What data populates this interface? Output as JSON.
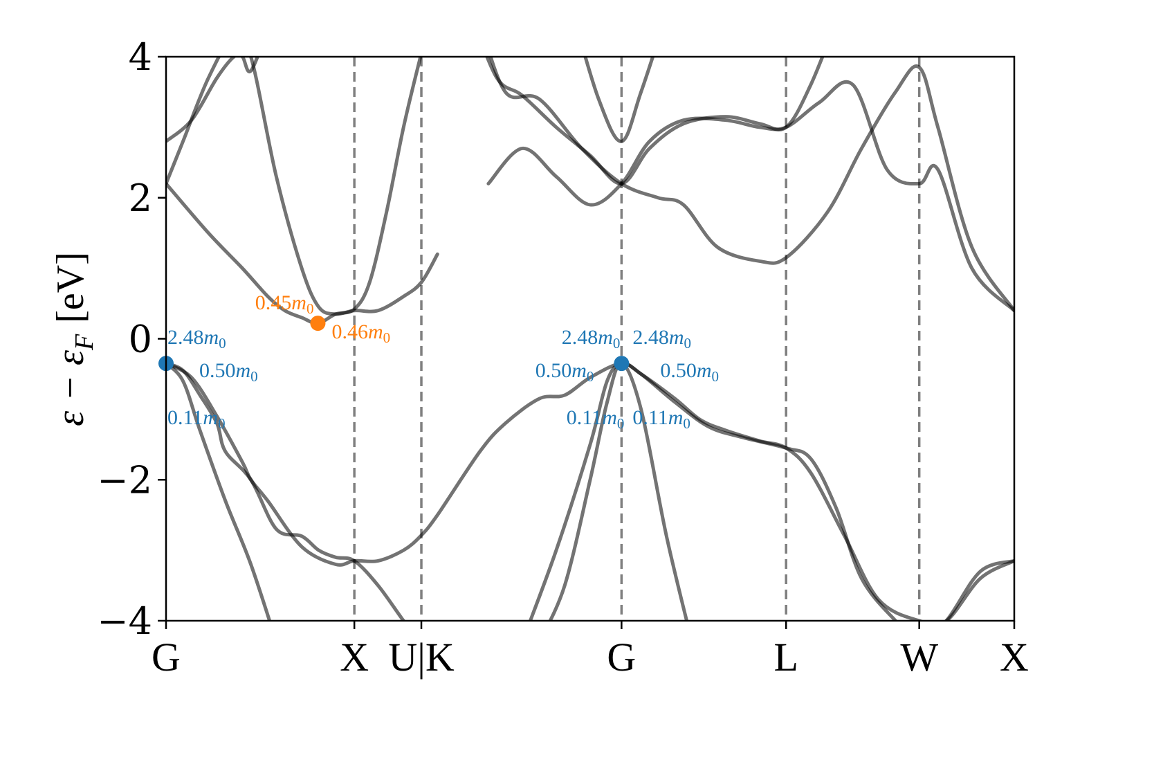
{
  "chart_data": {
    "type": "line",
    "title": "",
    "xlabel": "",
    "ylabel": "ε − ε",
    "ylabel_sub": "F",
    "ylabel_unit": "[eV]",
    "ylim": [
      -4,
      4
    ],
    "yticks": [
      {
        "value": 4,
        "label": "4"
      },
      {
        "value": 2,
        "label": "2"
      },
      {
        "value": 0,
        "label": "0"
      },
      {
        "value": -2,
        "label": "−2"
      },
      {
        "value": -4,
        "label": "−4"
      }
    ],
    "x_range": [
      0,
      1
    ],
    "kpoints": [
      {
        "label": "G",
        "pos": 0.0
      },
      {
        "label": "X",
        "pos": 0.222
      },
      {
        "label": "U|K",
        "pos": 0.301
      },
      {
        "label": "G",
        "pos": 0.537
      },
      {
        "label": "L",
        "pos": 0.731
      },
      {
        "label": "W",
        "pos": 0.888
      },
      {
        "label": "X",
        "pos": 1.0
      }
    ],
    "grid": false,
    "series": [
      {
        "x": [
          0,
          0.03,
          0.06,
          0.09,
          0.1,
          0.12,
          0.16,
          0.2,
          0.222,
          0.25,
          0.28,
          0.3,
          0.32,
          0.37,
          0.4,
          0.44,
          0.47,
          0.5,
          0.537,
          0.56,
          0.6,
          0.63,
          0.66,
          0.7,
          0.731,
          0.76,
          0.8,
          0.84,
          0.888,
          0.92,
          0.96,
          1.0
        ],
        "y": [
          -0.35,
          -0.55,
          -1.1,
          -1.75,
          -2.0,
          -2.3,
          -2.95,
          -3.2,
          -3.15,
          -3.15,
          -3.0,
          -2.8,
          -2.5,
          -1.6,
          -1.2,
          -0.85,
          -0.8,
          -0.55,
          -0.35,
          -0.5,
          -0.85,
          -1.15,
          -1.3,
          -1.45,
          -1.55,
          -1.9,
          -2.8,
          -3.7,
          -4.0,
          -4.0,
          -3.4,
          -3.15
        ]
      },
      {
        "x": [
          0,
          0.02,
          0.04,
          0.06,
          0.07,
          0.1,
          0.13,
          0.16,
          0.18,
          0.2,
          0.222,
          0.25,
          0.28,
          0.3
        ],
        "y": [
          -0.35,
          -0.45,
          -0.8,
          -1.2,
          -1.6,
          -2.0,
          -2.7,
          -2.8,
          -3.0,
          -3.1,
          -3.15,
          -3.5,
          -4.0,
          -4.3
        ]
      },
      {
        "x": [
          0,
          0.02,
          0.04,
          0.07,
          0.1,
          0.13
        ],
        "y": [
          -0.35,
          -0.6,
          -1.3,
          -2.3,
          -3.2,
          -4.3
        ]
      },
      {
        "x": [
          0.42,
          0.46,
          0.5,
          0.52,
          0.537,
          0.56,
          0.6,
          0.64,
          0.68,
          0.731,
          0.76,
          0.79,
          0.82,
          0.86,
          0.888,
          0.92,
          0.96,
          1.0
        ],
        "y": [
          -4.3,
          -3.0,
          -1.5,
          -0.6,
          -0.35,
          -0.5,
          -0.9,
          -1.25,
          -1.4,
          -1.55,
          -1.7,
          -2.4,
          -3.4,
          -4.0,
          -4.3,
          -4.0,
          -3.3,
          -3.15
        ]
      },
      {
        "x": [
          0.44,
          0.47,
          0.5,
          0.52,
          0.537,
          0.56,
          0.59,
          0.62
        ],
        "y": [
          -4.3,
          -3.5,
          -2.0,
          -0.9,
          -0.35,
          -1.0,
          -2.8,
          -4.3
        ]
      },
      {
        "x": [
          0,
          0.02,
          0.05,
          0.08,
          0.1,
          0.13,
          0.16,
          0.18,
          0.2,
          0.222,
          0.25,
          0.28,
          0.301,
          0.32
        ],
        "y": [
          2.2,
          2.8,
          3.7,
          4.3,
          4.0,
          2.3,
          1.0,
          0.45,
          0.35,
          0.4,
          0.4,
          0.6,
          0.8,
          1.2
        ]
      },
      {
        "x": [
          0,
          0.05,
          0.09,
          0.12,
          0.14,
          0.16,
          0.179,
          0.2,
          0.222,
          0.24,
          0.26,
          0.28,
          0.3,
          0.305,
          0.31
        ],
        "y": [
          2.2,
          1.5,
          1.0,
          0.6,
          0.4,
          0.3,
          0.22,
          0.35,
          0.42,
          0.8,
          1.8,
          3.0,
          4.0,
          4.2,
          4.5
        ]
      },
      {
        "x": [
          0,
          0.03,
          0.06,
          0.08,
          0.09,
          0.1,
          0.12
        ],
        "y": [
          2.8,
          3.1,
          3.7,
          4.0,
          4.0,
          3.8,
          4.4
        ]
      },
      {
        "x": [
          0.38,
          0.42,
          0.46,
          0.5,
          0.537,
          0.57,
          0.61,
          0.66,
          0.7,
          0.731,
          0.77,
          0.81,
          0.85,
          0.888,
          0.91,
          0.95,
          1.0
        ],
        "y": [
          2.2,
          2.7,
          2.3,
          1.9,
          2.2,
          2.8,
          3.1,
          3.1,
          3.0,
          3.0,
          3.35,
          3.6,
          2.4,
          2.2,
          2.4,
          1.0,
          0.4
        ]
      },
      {
        "x": [
          0.37,
          0.4,
          0.44,
          0.49,
          0.537,
          0.58,
          0.61,
          0.65,
          0.7,
          0.731,
          0.78,
          0.82,
          0.86,
          0.888,
          0.91,
          0.95,
          1.0
        ],
        "y": [
          4.5,
          3.5,
          3.4,
          2.7,
          2.2,
          2.0,
          1.9,
          1.3,
          1.1,
          1.15,
          1.8,
          2.7,
          3.5,
          3.85,
          3.0,
          1.3,
          0.4
        ]
      },
      {
        "x": [
          0.36,
          0.39,
          0.42,
          0.46,
          0.5,
          0.537,
          0.57,
          0.61,
          0.66,
          0.7,
          0.731,
          0.76,
          0.79
        ],
        "y": [
          4.6,
          3.7,
          3.45,
          3.0,
          2.6,
          2.2,
          2.7,
          3.05,
          3.15,
          3.05,
          3.0,
          3.6,
          4.5
        ]
      },
      {
        "x": [
          0.48,
          0.51,
          0.537,
          0.56,
          0.59
        ],
        "y": [
          4.6,
          3.4,
          2.8,
          3.5,
          4.6
        ]
      }
    ],
    "extrema": [
      {
        "x": 0.0,
        "y": -0.35,
        "color": "#1f77b4"
      },
      {
        "x": 0.179,
        "y": 0.22,
        "color": "#ff7f0e"
      },
      {
        "x": 0.537,
        "y": -0.35,
        "color": "#1f77b4"
      }
    ],
    "annotations": [
      {
        "x": 0.0,
        "y": -0.35,
        "num": "2.48",
        "sym": "m",
        "sub": "0",
        "color": "#1f77b4",
        "anchor": "start",
        "dx": 2,
        "dy": -28
      },
      {
        "x": 0.0,
        "y": -0.35,
        "num": "0.50",
        "sym": "m",
        "sub": "0",
        "color": "#1f77b4",
        "anchor": "start",
        "dx": 48,
        "dy": 20
      },
      {
        "x": 0.0,
        "y": -0.35,
        "num": "0.11",
        "sym": "m",
        "sub": "0",
        "color": "#1f77b4",
        "anchor": "start",
        "dx": 2,
        "dy": 88
      },
      {
        "x": 0.179,
        "y": 0.22,
        "num": "0.45",
        "sym": "m",
        "sub": "0",
        "color": "#ff7f0e",
        "anchor": "end",
        "dx": -6,
        "dy": -20
      },
      {
        "x": 0.179,
        "y": 0.22,
        "num": "0.46",
        "sym": "m",
        "sub": "0",
        "color": "#ff7f0e",
        "anchor": "start",
        "dx": 20,
        "dy": 22
      },
      {
        "x": 0.537,
        "y": -0.35,
        "num": "2.48",
        "sym": "m",
        "sub": "0",
        "color": "#1f77b4",
        "anchor": "end",
        "dx": -2,
        "dy": -28
      },
      {
        "x": 0.537,
        "y": -0.35,
        "num": "2.48",
        "sym": "m",
        "sub": "0",
        "color": "#1f77b4",
        "anchor": "start",
        "dx": 16,
        "dy": -28
      },
      {
        "x": 0.537,
        "y": -0.35,
        "num": "0.50",
        "sym": "m",
        "sub": "0",
        "color": "#1f77b4",
        "anchor": "end",
        "dx": -40,
        "dy": 20
      },
      {
        "x": 0.537,
        "y": -0.35,
        "num": "0.50",
        "sym": "m",
        "sub": "0",
        "color": "#1f77b4",
        "anchor": "start",
        "dx": 56,
        "dy": 20
      },
      {
        "x": 0.537,
        "y": -0.35,
        "num": "0.11",
        "sym": "m",
        "sub": "0",
        "color": "#1f77b4",
        "anchor": "end",
        "dx": 4,
        "dy": 88
      },
      {
        "x": 0.537,
        "y": -0.35,
        "num": "0.11",
        "sym": "m",
        "sub": "0",
        "color": "#1f77b4",
        "anchor": "start",
        "dx": 16,
        "dy": 88
      }
    ]
  }
}
